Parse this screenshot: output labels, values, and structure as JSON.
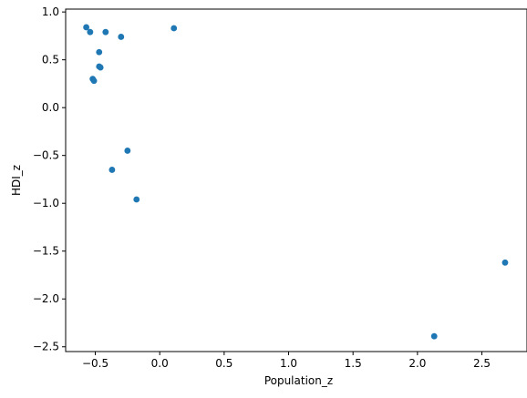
{
  "chart_data": {
    "type": "scatter",
    "title": "",
    "xlabel": "Population_z",
    "ylabel": "HDI_z",
    "xlim": [
      -0.73,
      2.85
    ],
    "ylim": [
      -2.55,
      1.03
    ],
    "x_ticks": [
      -0.5,
      0.0,
      0.5,
      1.0,
      1.5,
      2.0,
      2.5
    ],
    "x_tick_labels": [
      "−0.5",
      "0.0",
      "0.5",
      "1.0",
      "1.5",
      "2.0",
      "2.5"
    ],
    "y_ticks": [
      1.0,
      0.5,
      0.0,
      -0.5,
      -1.0,
      -1.5,
      -2.0,
      -2.5
    ],
    "y_tick_labels": [
      "1.0",
      "0.5",
      "0.0",
      "−0.5",
      "−1.0",
      "−1.5",
      "−2.0",
      "−2.5"
    ],
    "grid": false,
    "marker_color": "#1f77b4",
    "points": [
      {
        "x": -0.57,
        "y": 0.84
      },
      {
        "x": -0.54,
        "y": 0.79
      },
      {
        "x": -0.42,
        "y": 0.79
      },
      {
        "x": -0.3,
        "y": 0.74
      },
      {
        "x": 0.11,
        "y": 0.83
      },
      {
        "x": -0.47,
        "y": 0.58
      },
      {
        "x": -0.47,
        "y": 0.43
      },
      {
        "x": -0.46,
        "y": 0.42
      },
      {
        "x": -0.52,
        "y": 0.3
      },
      {
        "x": -0.51,
        "y": 0.28
      },
      {
        "x": -0.25,
        "y": -0.45
      },
      {
        "x": -0.37,
        "y": -0.65
      },
      {
        "x": -0.18,
        "y": -0.96
      },
      {
        "x": 2.68,
        "y": -1.62
      },
      {
        "x": 2.13,
        "y": -2.39
      }
    ]
  }
}
